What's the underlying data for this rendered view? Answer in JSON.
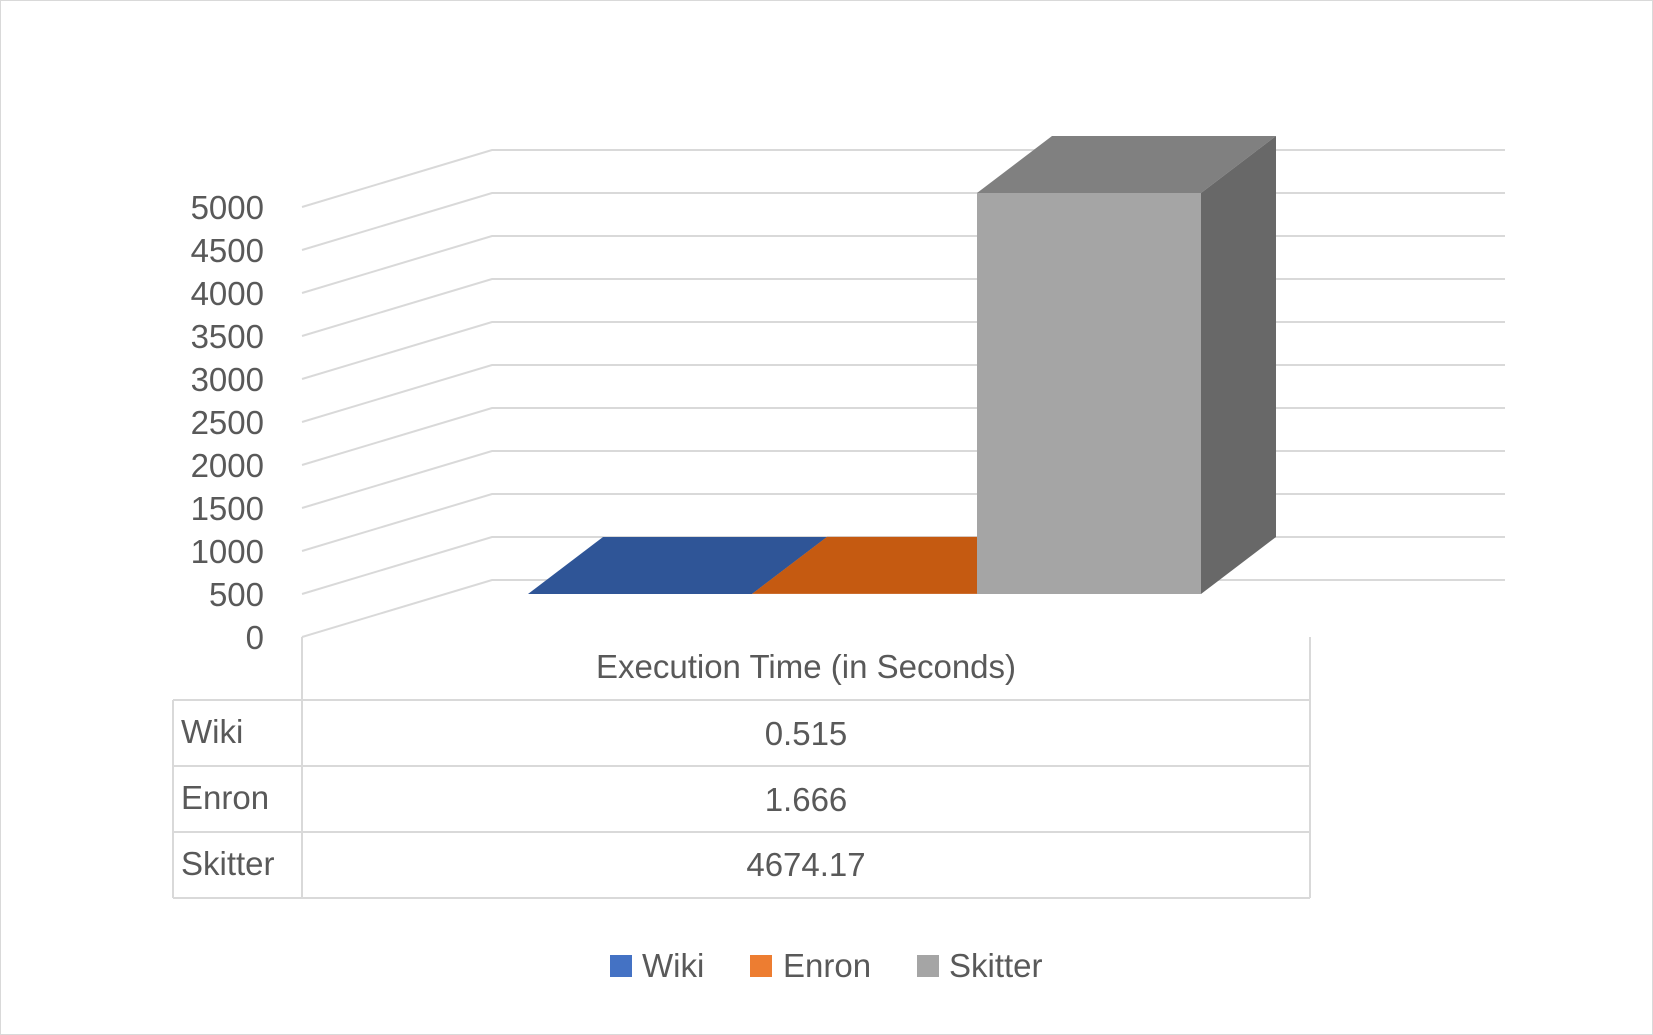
{
  "chart_data": {
    "type": "bar",
    "categories": [
      "Execution Time (in Seconds)"
    ],
    "series": [
      {
        "name": "Wiki",
        "values": [
          0.515
        ],
        "color": "#2f5597"
      },
      {
        "name": "Enron",
        "values": [
          1.666
        ],
        "color": "#c55a11"
      },
      {
        "name": "Skitter",
        "values": [
          4674.17
        ],
        "color": "#a5a5a5"
      }
    ],
    "y_ticks": [
      "0",
      "500",
      "1000",
      "1500",
      "2000",
      "2500",
      "3000",
      "3500",
      "4000",
      "4500",
      "5000"
    ],
    "ylim": [
      0,
      5000
    ],
    "data_table": {
      "column_header": "Execution Time (in Seconds)",
      "rows": [
        {
          "label": "Wiki",
          "value": "0.515"
        },
        {
          "label": "Enron",
          "value": "1.666"
        },
        {
          "label": "Skitter",
          "value": "4674.17"
        }
      ]
    },
    "legend": {
      "position": "bottom",
      "items": [
        "Wiki",
        "Enron",
        "Skitter"
      ]
    },
    "style": "3d-column",
    "grid": true
  }
}
